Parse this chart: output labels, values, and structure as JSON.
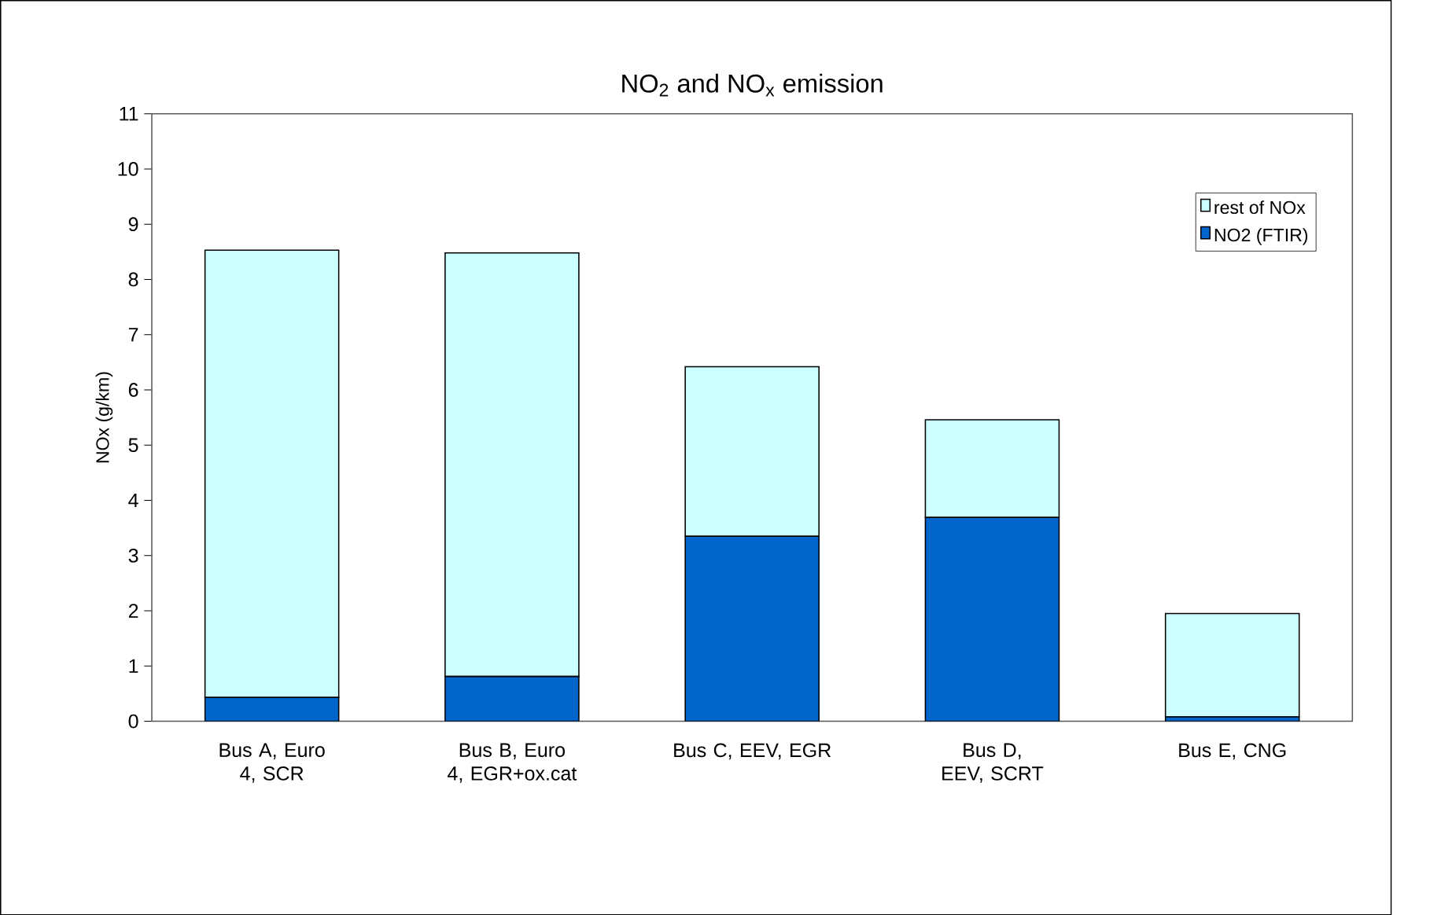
{
  "chart_data": {
    "type": "bar",
    "stacked": true,
    "title": "NO$_{2}$ and NO$_{x}$ emission",
    "ylabel": "NOx (g/km)",
    "categories": [
      "Bus A, Euro 4, SCR",
      "Bus B, Euro 4, EGR+ox.cat",
      "Bus C, EEV, EGR",
      "Bus D, EEV, SCRT",
      "Bus E, CNG"
    ],
    "series": [
      {
        "name": "NO2 (FTIR)",
        "color": "#0066cc",
        "values": [
          0.43,
          0.81,
          3.35,
          3.69,
          0.08
        ]
      },
      {
        "name": "rest of NOx",
        "color": "#ccffff",
        "values": [
          8.1,
          7.67,
          3.07,
          1.77,
          1.87
        ]
      }
    ],
    "ylim": [
      0,
      11
    ],
    "yticks": [
      0,
      1,
      2,
      3,
      4,
      5,
      6,
      7,
      8,
      9,
      10,
      11
    ],
    "grid": false,
    "legend": "top right"
  }
}
